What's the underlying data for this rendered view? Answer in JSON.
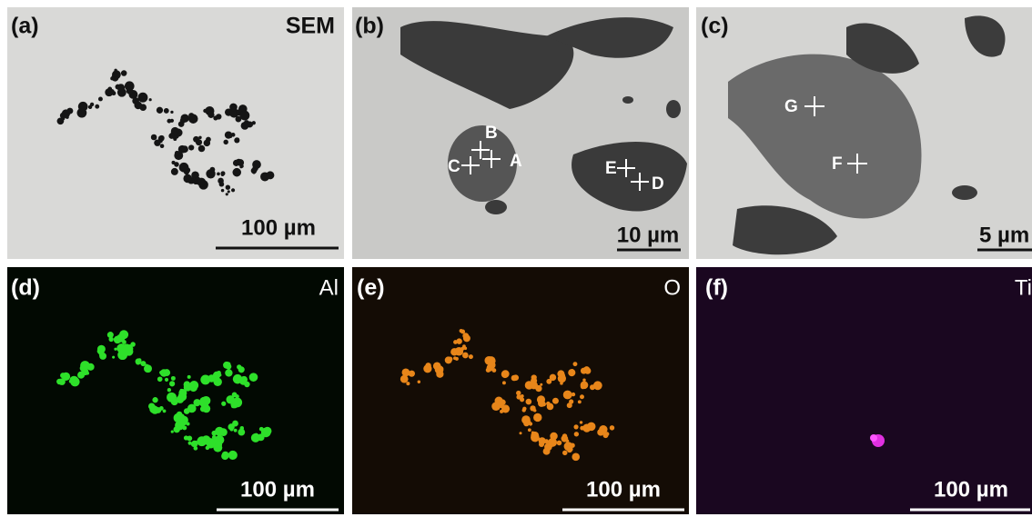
{
  "panels": [
    {
      "label": "(a)",
      "tag": "SEM",
      "scale_bar": "100 µm"
    },
    {
      "label": "(b)",
      "scale_bar": "10 µm",
      "points": [
        "A",
        "B",
        "C",
        "D",
        "E"
      ]
    },
    {
      "label": "(c)",
      "scale_bar": "5 µm",
      "points": [
        "G",
        "F"
      ]
    },
    {
      "label": "(d)",
      "tag": "Al",
      "scale_bar": "100 µm"
    },
    {
      "label": "(e)",
      "tag": "O",
      "scale_bar": "100 µm"
    },
    {
      "label": "(f)",
      "tag": "Ti",
      "scale_bar": "100 µm"
    }
  ]
}
